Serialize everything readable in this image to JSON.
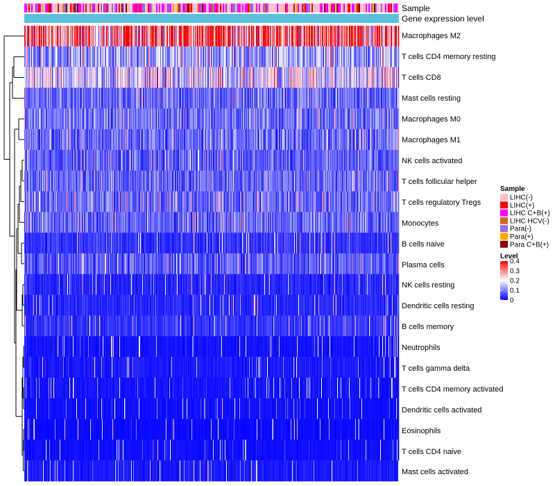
{
  "chart_data": {
    "type": "heatmap",
    "title": "",
    "annotation_tracks": [
      "Sample",
      "Gene expression level"
    ],
    "rows": [
      {
        "label": "Macrophages M2",
        "mean": 0.3
      },
      {
        "label": "T cells CD4 memory resting",
        "mean": 0.12
      },
      {
        "label": "T cells CD8",
        "mean": 0.17
      },
      {
        "label": "Mast cells resting",
        "mean": 0.08
      },
      {
        "label": "Macrophages M0",
        "mean": 0.09
      },
      {
        "label": "Macrophages M1",
        "mean": 0.085
      },
      {
        "label": "NK cells activated",
        "mean": 0.075
      },
      {
        "label": "T cells follicular helper",
        "mean": 0.08
      },
      {
        "label": "T cells regulatory  Tregs",
        "mean": 0.085
      },
      {
        "label": "Monocytes",
        "mean": 0.08
      },
      {
        "label": "B cells naive",
        "mean": 0.04
      },
      {
        "label": "Plasma cells",
        "mean": 0.07
      },
      {
        "label": "NK cells resting",
        "mean": 0.03
      },
      {
        "label": "Dendritic cells resting",
        "mean": 0.03
      },
      {
        "label": "B cells memory",
        "mean": 0.04
      },
      {
        "label": "Neutrophils",
        "mean": 0.015
      },
      {
        "label": "T cells gamma delta",
        "mean": 0.02
      },
      {
        "label": "T cells CD4 memory activated",
        "mean": 0.015
      },
      {
        "label": "Dendritic cells activated",
        "mean": 0.012
      },
      {
        "label": "Eosinophils",
        "mean": 0.008
      },
      {
        "label": "T cells CD4 naive",
        "mean": 0.012
      },
      {
        "label": "Mast cells activated",
        "mean": 0.02
      }
    ],
    "sample_legend": {
      "title": "Sample",
      "entries": [
        {
          "label": "LIHC(-)",
          "color": "#FFC0CB"
        },
        {
          "label": "LIHC(+)",
          "color": "#FF0000"
        },
        {
          "label": "LIHC C+B(+)",
          "color": "#FF00FF"
        },
        {
          "label": "LIHC HCV(-)",
          "color": "#D2691E"
        },
        {
          "label": "Para(-)",
          "color": "#9370DB"
        },
        {
          "label": "Para(+)",
          "color": "#FFA500"
        },
        {
          "label": "Para C+B(+)",
          "color": "#8B0000"
        }
      ]
    },
    "level_legend": {
      "title": "Level",
      "ticks": [
        "0.4",
        "0.3",
        "0.2",
        "0.1",
        "0"
      ],
      "tick_values": [
        0.4,
        0.3,
        0.2,
        0.1,
        0
      ],
      "range": [
        0,
        0.4
      ]
    },
    "colors": {
      "low": "#0000FF",
      "mid": "#FFFFFF",
      "high": "#FF0000",
      "gene_expression_bar": "#5BC0DE"
    }
  }
}
